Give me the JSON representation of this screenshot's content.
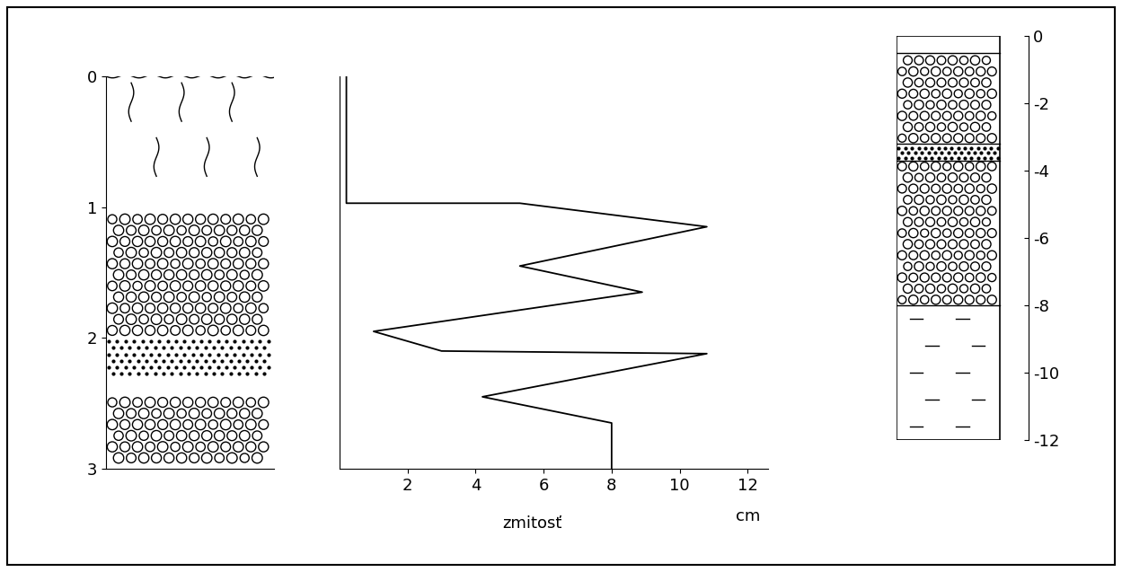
{
  "left_column": {
    "ylim": [
      0,
      3
    ],
    "yticks": [
      0,
      1,
      2,
      3
    ],
    "layers": [
      {
        "kind": "soil",
        "top": 0,
        "bottom": 1.05
      },
      {
        "kind": "gravel",
        "top": 1.05,
        "bottom": 2.0
      },
      {
        "kind": "sand",
        "top": 2.0,
        "bottom": 2.3
      },
      {
        "kind": "gravel",
        "top": 2.45,
        "bottom": 3.0
      }
    ]
  },
  "chart_data": {
    "type": "line",
    "xlabel": "zmitosť",
    "unit": "cm",
    "x": [
      0.2,
      0.2,
      5.3,
      10.8,
      5.3,
      8.9,
      1.0,
      3.0,
      10.8,
      4.2,
      8.0,
      8.0
    ],
    "y": [
      0,
      0.97,
      0.97,
      1.15,
      1.45,
      1.65,
      1.95,
      2.1,
      2.12,
      2.45,
      2.65,
      3.0
    ],
    "xlim": [
      0,
      12.6
    ],
    "xticks": [
      2,
      4,
      6,
      8,
      10,
      12
    ],
    "ylim": [
      0,
      3
    ],
    "tick_labels": "x",
    "color": "#000000"
  },
  "right_column": {
    "ylim": [
      -12,
      0
    ],
    "yticks": [
      0,
      -2,
      -4,
      -6,
      -8,
      -10,
      -12
    ],
    "layers": [
      {
        "kind": "soil",
        "top": 0,
        "bottom": -0.5
      },
      {
        "kind": "gravel",
        "top": -0.5,
        "bottom": -3.2
      },
      {
        "kind": "sand",
        "top": -3.2,
        "bottom": -3.7
      },
      {
        "kind": "gravel",
        "top": -3.7,
        "bottom": -8.0
      },
      {
        "kind": "clay",
        "top": -8.0,
        "bottom": -12
      }
    ]
  }
}
